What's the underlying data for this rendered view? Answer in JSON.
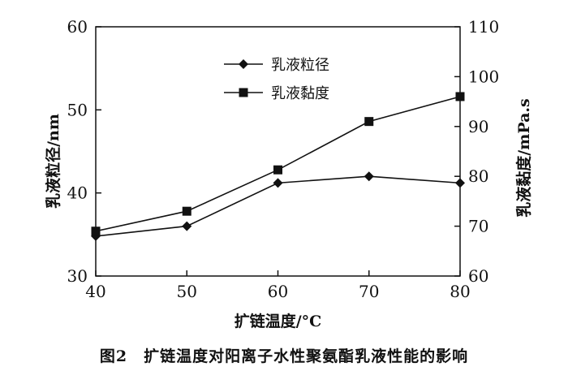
{
  "chart_data": {
    "type": "line",
    "x": [
      40,
      50,
      60,
      70,
      80
    ],
    "xlabel": "扩链温度/°C",
    "xlim": [
      40,
      80
    ],
    "xticks": [
      40,
      50,
      60,
      70,
      80
    ],
    "ylabel_left": "乳液粒径/nm",
    "ylim_left": [
      30,
      60
    ],
    "yticks_left": [
      30,
      40,
      50,
      60
    ],
    "ylabel_right": "乳液黏度/mPa.s",
    "ylim_right": [
      60,
      110
    ],
    "yticks_right": [
      60,
      70,
      80,
      90,
      100,
      110
    ],
    "grid": false,
    "legend_position": "top-center",
    "series": [
      {
        "name": "乳液粒径",
        "axis": "left",
        "marker": "diamond",
        "values": [
          34.8,
          36.0,
          41.2,
          42.0,
          41.2
        ]
      },
      {
        "name": "乳液黏度",
        "axis": "right",
        "marker": "square",
        "values": [
          69.0,
          73.0,
          81.3,
          91.0,
          96.0
        ]
      }
    ]
  },
  "caption": "图2　扩链温度对阳离子水性聚氨酯乳液性能的影响"
}
